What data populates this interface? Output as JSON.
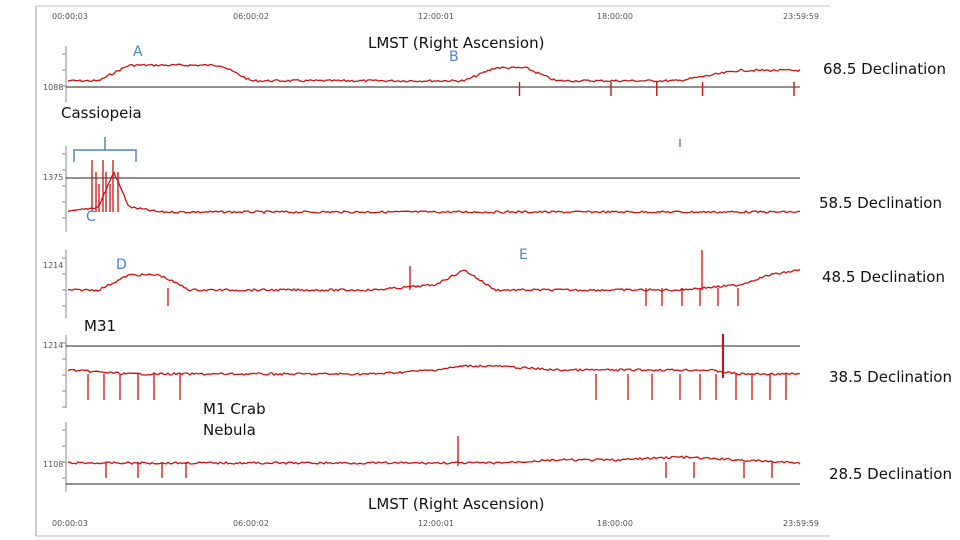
{
  "axis_title": "LMST (Right Ascension)",
  "time_ticks": [
    "00:00:03",
    "06:00:02",
    "12:00:01",
    "18:00:00",
    "23:59:59"
  ],
  "annotations": {
    "a": "A",
    "b": "B",
    "c": "C",
    "d": "D",
    "e": "E",
    "cassiopeia": "Cassiopeia",
    "m31": "M31",
    "crab_line1": "M1 Crab",
    "crab_line2": "Nebula"
  },
  "colors": {
    "trace": "#cc1111",
    "bracket": "#4a86c8"
  },
  "chart_data": [
    {
      "type": "line",
      "title": "68.5 Declination",
      "ytick": "1088",
      "x": [
        0,
        1,
        2,
        3,
        4,
        5,
        6,
        7,
        8,
        9,
        10,
        11,
        12,
        13,
        14,
        15,
        16,
        17,
        18,
        19,
        20,
        21,
        22,
        23,
        24
      ],
      "values": [
        2,
        2,
        8,
        8,
        8,
        8,
        2,
        2,
        2,
        2,
        2,
        2,
        2,
        2,
        7,
        7,
        2,
        2,
        2,
        2,
        2,
        4,
        6,
        6,
        6
      ],
      "dips_at_hours": [
        15,
        18,
        19.5,
        21,
        24
      ]
    },
    {
      "type": "line",
      "title": "58.5 Declination",
      "ytick": "1375",
      "x": [
        0,
        1,
        1.5,
        2,
        3,
        4,
        6,
        8,
        10,
        12,
        14,
        16,
        18,
        20,
        22,
        24
      ],
      "values": [
        0,
        1,
        8,
        1,
        0,
        0,
        0,
        0,
        0,
        0,
        0,
        0,
        0,
        0,
        0,
        0
      ]
    },
    {
      "type": "line",
      "title": "48.5 Declination",
      "ytick": "1214",
      "x": [
        0,
        1,
        2,
        3,
        4,
        5,
        6,
        8,
        10,
        12,
        13,
        14,
        15,
        16,
        18,
        20,
        22,
        23,
        24
      ],
      "values": [
        0,
        0,
        3,
        3,
        0,
        0,
        0,
        0,
        0,
        1,
        4,
        0,
        0,
        0,
        0,
        0,
        1,
        3,
        4
      ]
    },
    {
      "type": "line",
      "title": "38.5 Declination",
      "ytick": "1214",
      "x": [
        0,
        2,
        4,
        6,
        8,
        10,
        12,
        13,
        14,
        16,
        18,
        20,
        21,
        22,
        24
      ],
      "values": [
        2,
        1,
        1,
        1,
        1,
        1,
        2,
        3,
        3,
        2,
        2,
        2,
        2,
        1,
        1
      ]
    },
    {
      "type": "line",
      "title": "28.5 Declination",
      "ytick": "1108",
      "x": [
        0,
        2,
        4,
        6,
        8,
        10,
        12,
        14,
        16,
        18,
        20,
        22,
        24
      ],
      "values": [
        1,
        1,
        1,
        1,
        1,
        1,
        1,
        1,
        2,
        2,
        3,
        2,
        1
      ]
    }
  ]
}
